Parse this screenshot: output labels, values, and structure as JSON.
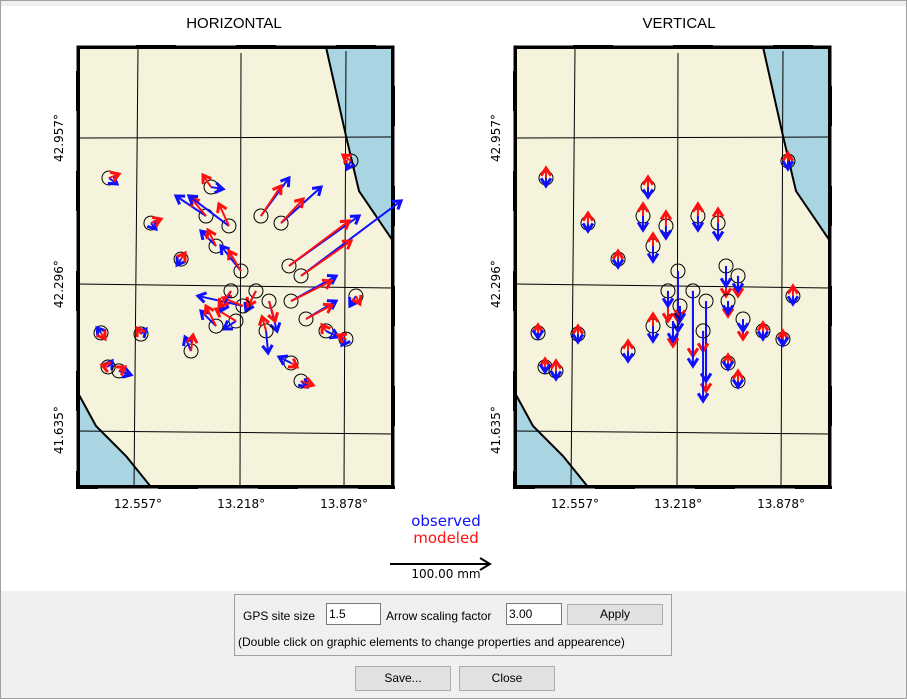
{
  "panels": {
    "horizontal_title": "HORIZONTAL",
    "vertical_title": "VERTICAL"
  },
  "axes": {
    "lon_ticks": [
      "12.557°",
      "13.218°",
      "13.878°"
    ],
    "lat_ticks": [
      "42.957°",
      "42.296°",
      "41.635°"
    ],
    "lon_values": [
      12.557,
      13.218,
      13.878
    ],
    "lat_values": [
      42.957,
      42.296,
      41.635
    ]
  },
  "colors": {
    "observed": "#1010ff",
    "modeled": "#ff1010",
    "land": "#f5f3dc",
    "sea": "#a9d5e2"
  },
  "legend": {
    "observed": "observed",
    "modeled": "modeled",
    "scale_label": "100.00 mm",
    "scale_mm": 100
  },
  "sites": [
    {
      "lon": 12.371,
      "lat": 42.776,
      "obs_h": [
        8,
        -6
      ],
      "mod_h": [
        10,
        4
      ],
      "obs_v": -8,
      "mod_v": 10
    },
    {
      "lon": 12.64,
      "lat": 42.572,
      "obs_h": [
        5,
        -6
      ],
      "mod_h": [
        10,
        4
      ],
      "obs_v": -8,
      "mod_v": 10
    },
    {
      "lon": 12.833,
      "lat": 42.409,
      "obs_h": [
        -4,
        -6
      ],
      "mod_h": [
        4,
        6
      ],
      "obs_v": -8,
      "mod_v": 8
    },
    {
      "lon": 12.32,
      "lat": 42.075,
      "obs_h": [
        -4,
        5
      ],
      "mod_h": [
        4,
        -6
      ],
      "obs_v": -5,
      "mod_v": 8
    },
    {
      "lon": 12.576,
      "lat": 42.07,
      "obs_h": [
        5,
        5
      ],
      "mod_h": [
        -4,
        6
      ],
      "obs_v": -8,
      "mod_v": 8
    },
    {
      "lon": 12.365,
      "lat": 41.921,
      "obs_h": [
        4,
        6
      ],
      "mod_h": [
        -6,
        2
      ],
      "obs_v": -5,
      "mod_v": 8
    },
    {
      "lon": 12.435,
      "lat": 41.903,
      "obs_h": [
        12,
        -4
      ],
      "mod_h": [
        6,
        4
      ],
      "obs_v": -8,
      "mod_v": 10
    },
    {
      "lon": 13.025,
      "lat": 42.735,
      "obs_h": [
        12,
        -2
      ],
      "mod_h": [
        -8,
        12
      ],
      "obs_v": -10,
      "mod_v": 10
    },
    {
      "lon": 12.993,
      "lat": 42.604,
      "obs_h": [
        -30,
        20
      ],
      "mod_h": [
        -15,
        18
      ],
      "obs_v": -14,
      "mod_v": 12
    },
    {
      "lon": 13.057,
      "lat": 42.468,
      "obs_h": [
        -15,
        15
      ],
      "mod_h": [
        -8,
        16
      ],
      "obs_v": -15,
      "mod_v": 12
    },
    {
      "lon": 13.14,
      "lat": 42.559,
      "obs_h": [
        -40,
        30
      ],
      "mod_h": [
        -10,
        22
      ],
      "obs_v": -12,
      "mod_v": 14
    },
    {
      "lon": 13.345,
      "lat": 42.604,
      "obs_h": [
        28,
        38
      ],
      "mod_h": [
        20,
        30
      ],
      "obs_v": -14,
      "mod_v": 12
    },
    {
      "lon": 13.474,
      "lat": 42.572,
      "obs_h": [
        40,
        36
      ],
      "mod_h": [
        22,
        24
      ],
      "obs_v": -16,
      "mod_v": 14
    },
    {
      "lon": 13.217,
      "lat": 42.355,
      "obs_h": [
        -20,
        25
      ],
      "mod_h": [
        -12,
        20
      ],
      "obs_v": -60,
      "mod_v": -50
    },
    {
      "lon": 13.313,
      "lat": 42.265,
      "obs_h": [
        -10,
        -20
      ],
      "mod_h": [
        -8,
        -15
      ],
      "obs_v": -75,
      "mod_v": -65
    },
    {
      "lon": 13.397,
      "lat": 42.219,
      "obs_h": [
        8,
        -30
      ],
      "mod_h": [
        6,
        -20
      ],
      "obs_v": -80,
      "mod_v": -90
    },
    {
      "lon": 13.525,
      "lat": 42.378,
      "obs_h": [
        70,
        50
      ],
      "mod_h": [
        60,
        45
      ],
      "obs_v": -20,
      "mod_v": -30
    },
    {
      "lon": 13.602,
      "lat": 42.333,
      "obs_h": [
        100,
        75
      ],
      "mod_h": [
        50,
        35
      ],
      "obs_v": -15,
      "mod_v": -20
    },
    {
      "lon": 13.538,
      "lat": 42.219,
      "obs_h": [
        45,
        25
      ],
      "mod_h": [
        40,
        20
      ],
      "obs_v": -12,
      "mod_v": -15
    },
    {
      "lon": 13.23,
      "lat": 42.197,
      "obs_h": [
        -45,
        10
      ],
      "mod_h": [
        -20,
        8
      ],
      "obs_v": -15,
      "mod_v": -12
    },
    {
      "lon": 13.185,
      "lat": 42.129,
      "obs_h": [
        -12,
        -8
      ],
      "mod_h": [
        -20,
        12
      ],
      "obs_v": -20,
      "mod_v": -25
    },
    {
      "lon": 13.057,
      "lat": 42.106,
      "obs_h": [
        -15,
        15
      ],
      "mod_h": [
        -10,
        20
      ],
      "obs_v": -15,
      "mod_v": 12
    },
    {
      "lon": 12.897,
      "lat": 41.993,
      "obs_h": [
        -6,
        14
      ],
      "mod_h": [
        2,
        16
      ],
      "obs_v": -10,
      "mod_v": 10
    },
    {
      "lon": 13.762,
      "lat": 42.084,
      "obs_h": [
        12,
        -6
      ],
      "mod_h": [
        -4,
        6
      ],
      "obs_v": -8,
      "mod_v": 8
    },
    {
      "lon": 13.89,
      "lat": 42.047,
      "obs_h": [
        -4,
        -6
      ],
      "mod_h": [
        -8,
        4
      ],
      "obs_v": -6,
      "mod_v": 8
    },
    {
      "lon": 13.922,
      "lat": 42.853,
      "obs_h": [
        -4,
        -8
      ],
      "mod_h": [
        -8,
        6
      ],
      "obs_v": -8,
      "mod_v": 8
    },
    {
      "lon": 13.954,
      "lat": 42.242,
      "obs_h": [
        -6,
        -10
      ],
      "mod_h": [
        4,
        -8
      ],
      "obs_v": -8,
      "mod_v": 10
    },
    {
      "lon": 13.538,
      "lat": 41.939,
      "obs_h": [
        -12,
        6
      ],
      "mod_h": [
        6,
        -4
      ],
      "obs_v": -6,
      "mod_v": 8
    },
    {
      "lon": 13.602,
      "lat": 41.857,
      "obs_h": [
        6,
        -6
      ],
      "mod_h": [
        12,
        -4
      ],
      "obs_v": -6,
      "mod_v": 10
    },
    {
      "lon": 13.378,
      "lat": 42.084,
      "obs_h": [
        2,
        -22
      ],
      "mod_h": [
        -4,
        14
      ],
      "obs_v": -70,
      "mod_v": -20
    },
    {
      "lon": 13.634,
      "lat": 42.138,
      "obs_h": [
        30,
        18
      ],
      "mod_h": [
        26,
        14
      ],
      "obs_v": -12,
      "mod_v": -20
    },
    {
      "lon": 13.153,
      "lat": 42.265,
      "obs_h": [
        -10,
        -20
      ],
      "mod_h": [
        -12,
        -16
      ],
      "obs_v": -15,
      "mod_v": -30
    }
  ],
  "controls": {
    "site_size_label": "GPS site size",
    "site_size_value": "1.5",
    "arrow_scale_label": "Arrow scaling factor",
    "arrow_scale_value": "3.00",
    "apply_label": "Apply",
    "hint": "(Double click on graphic elements to change properties and appearence)",
    "save_label": "Save...",
    "close_label": "Close"
  }
}
